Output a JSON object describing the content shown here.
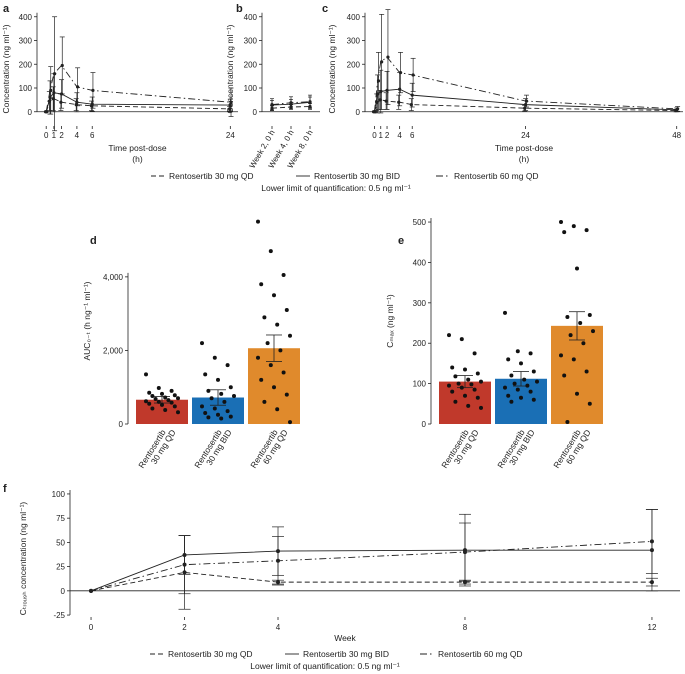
{
  "figure": {
    "colors": {
      "ink": "#222222",
      "bar_qd30": "#c0392b",
      "bar_bid30": "#1a6fb5",
      "bar_qd60": "#e08a2c"
    },
    "legend_top": {
      "entries": [
        {
          "label": "Rentosertib 30 mg QD",
          "dash": "dashed"
        },
        {
          "label": "Rentosertib 30 mg BID",
          "dash": "solid"
        },
        {
          "label": "Rentosertib 60 mg QD",
          "dash": "dashdot"
        }
      ],
      "lloq": "Lower limit of quantification: 0.5 ng ml⁻¹"
    },
    "legend_bottom": {
      "entries": [
        {
          "label": "Rentosertib 30 mg QD",
          "dash": "dashed"
        },
        {
          "label": "Rentosertib 30 mg BID",
          "dash": "solid"
        },
        {
          "label": "Rentosertib 60 mg QD",
          "dash": "dashdot"
        }
      ],
      "lloq": "Lower limit of quantification: 0.5 ng ml⁻¹"
    }
  },
  "chart_data": [
    {
      "panel": "a",
      "type": "line",
      "xlabel": "Time post-dose",
      "xunit": "(h)",
      "ylabel": "Concentration (ng ml⁻¹)",
      "xlim": [
        -1.2,
        25
      ],
      "ylim": [
        -60,
        420
      ],
      "xticks": [
        0,
        1,
        2,
        4,
        6,
        24
      ],
      "yticks": [
        0,
        100,
        200,
        300,
        400
      ],
      "series": [
        {
          "name": "Rentosertib 30 mg QD",
          "dash": "dashed",
          "x": [
            0,
            0.5,
            1,
            2,
            4,
            6,
            24
          ],
          "y": [
            0,
            45,
            55,
            40,
            30,
            25,
            12
          ],
          "err": [
            0,
            40,
            50,
            35,
            25,
            20,
            10
          ]
        },
        {
          "name": "Rentosertib 30 mg BID",
          "dash": "solid",
          "x": [
            0,
            0.5,
            1,
            2,
            4,
            6,
            24
          ],
          "y": [
            0,
            60,
            80,
            75,
            40,
            32,
            28
          ],
          "err": [
            0,
            70,
            80,
            60,
            40,
            30,
            25
          ]
        },
        {
          "name": "Rentosertib 60 mg QD",
          "dash": "dashdot",
          "x": [
            0,
            0.5,
            1,
            2,
            4,
            6,
            24
          ],
          "y": [
            0,
            90,
            160,
            195,
            105,
            90,
            40
          ],
          "err": [
            0,
            100,
            240,
            120,
            80,
            75,
            60
          ]
        }
      ]
    },
    {
      "panel": "b",
      "type": "line",
      "ylabel": "Concentration (ng ml⁻¹)",
      "ylim": [
        -60,
        420
      ],
      "yticks": [
        0,
        100,
        200,
        300,
        400
      ],
      "categories": [
        "Week 2, 0 h",
        "Week 4, 0 h",
        "Week 8, 0 h"
      ],
      "series": [
        {
          "name": "Rentosertib 30 mg QD",
          "dash": "dashed",
          "values": [
            15,
            20,
            22
          ],
          "err": [
            10,
            10,
            12
          ]
        },
        {
          "name": "Rentosertib 30 mg BID",
          "dash": "solid",
          "values": [
            28,
            32,
            40
          ],
          "err": [
            20,
            20,
            22
          ]
        },
        {
          "name": "Rentosertib 60 mg QD",
          "dash": "dashdot",
          "values": [
            30,
            38,
            42
          ],
          "err": [
            25,
            25,
            28
          ]
        }
      ]
    },
    {
      "panel": "c",
      "type": "line",
      "xlabel": "Time post-dose",
      "xunit": "(h)",
      "ylabel": "Concentration (ng ml⁻¹)",
      "xlim": [
        -1.5,
        49
      ],
      "ylim": [
        -60,
        420
      ],
      "xticks": [
        0,
        1,
        2,
        4,
        6,
        24,
        48
      ],
      "yticks": [
        0,
        100,
        200,
        300,
        400
      ],
      "series": [
        {
          "name": "Rentosertib 30 mg QD",
          "dash": "dashed",
          "x": [
            0,
            0.5,
            1,
            2,
            4,
            6,
            24,
            48
          ],
          "y": [
            0,
            40,
            50,
            45,
            40,
            30,
            15,
            5
          ],
          "err": [
            0,
            35,
            40,
            35,
            30,
            25,
            12,
            5
          ]
        },
        {
          "name": "Rentosertib 30 mg BID",
          "dash": "solid",
          "x": [
            0,
            0.5,
            1,
            2,
            4,
            6,
            24,
            48
          ],
          "y": [
            0,
            75,
            85,
            90,
            95,
            70,
            30,
            8
          ],
          "err": [
            0,
            80,
            90,
            80,
            70,
            50,
            25,
            8
          ]
        },
        {
          "name": "Rentosertib 60 mg QD",
          "dash": "dashdot",
          "x": [
            0,
            0.5,
            1,
            2,
            4,
            6,
            24,
            48
          ],
          "y": [
            0,
            130,
            210,
            230,
            165,
            155,
            45,
            12
          ],
          "err": [
            0,
            120,
            200,
            200,
            85,
            70,
            25,
            10
          ]
        }
      ]
    },
    {
      "panel": "d",
      "type": "bar",
      "ylabel": "AUC₀₋ₜ (h ng⁻¹ ml⁻¹)",
      "ylim": [
        0,
        5600
      ],
      "yticks": [
        0,
        2000,
        4000
      ],
      "ytick_labels": [
        "0",
        "2,000",
        "4,000"
      ],
      "categories": [
        "Rentosertib\n30 mg QD",
        "Rentosertib\n30 mg BID",
        "Rentosertib\n60 mg QD"
      ],
      "values": [
        660,
        720,
        2060
      ],
      "err": [
        90,
        210,
        360
      ],
      "points": [
        [
          1350,
          980,
          900,
          850,
          820,
          780,
          760,
          720,
          700,
          680,
          650,
          620,
          600,
          580,
          550,
          520,
          480,
          420,
          380,
          320
        ],
        [
          2200,
          1800,
          1600,
          1350,
          1200,
          1000,
          900,
          820,
          760,
          700,
          600,
          480,
          420,
          350,
          300,
          250,
          200,
          180,
          150
        ],
        [
          5500,
          4700,
          4050,
          3800,
          3500,
          3100,
          2900,
          2700,
          2400,
          2200,
          2000,
          1800,
          1600,
          1400,
          1200,
          1000,
          800,
          600,
          400,
          50
        ]
      ]
    },
    {
      "panel": "e",
      "type": "bar",
      "ylabel": "Cₘₐₓ (ng ml⁻¹)",
      "ylim": [
        0,
        510
      ],
      "yticks": [
        0,
        100,
        200,
        300,
        400,
        500
      ],
      "categories": [
        "Rentosertib\n30 mg QD",
        "Rentosertib\n30 mg BID",
        "Rentosertib\n60 mg QD"
      ],
      "values": [
        105,
        112,
        243
      ],
      "err": [
        15,
        18,
        35
      ],
      "points": [
        [
          220,
          210,
          175,
          140,
          135,
          125,
          118,
          110,
          105,
          100,
          98,
          95,
          90,
          85,
          80,
          70,
          65,
          55,
          45,
          40
        ],
        [
          275,
          180,
          175,
          160,
          150,
          130,
          120,
          110,
          105,
          100,
          95,
          90,
          85,
          80,
          70,
          65,
          60,
          55
        ],
        [
          500,
          490,
          480,
          475,
          385,
          270,
          265,
          250,
          230,
          220,
          200,
          170,
          160,
          130,
          120,
          75,
          50,
          5
        ]
      ]
    },
    {
      "panel": "f",
      "type": "line",
      "xlabel": "Week",
      "ylabel": "Cₜᵣₒᵤ₉ₕ concentration (ng ml⁻¹)",
      "xlim": [
        -0.45,
        12.6
      ],
      "ylim": [
        -27,
        102
      ],
      "xticks": [
        0,
        2,
        4,
        8,
        12
      ],
      "yticks": [
        -25,
        0,
        25,
        50,
        75,
        100
      ],
      "series": [
        {
          "name": "Rentosertib 30 mg QD",
          "dash": "dashed",
          "x": [
            0,
            2,
            4,
            8,
            12
          ],
          "y": [
            0,
            19,
            9,
            9,
            9
          ],
          "err": [
            0,
            38,
            2,
            2,
            4
          ]
        },
        {
          "name": "Rentosertib 30 mg BID",
          "dash": "solid",
          "x": [
            0,
            2,
            4,
            8,
            12
          ],
          "y": [
            0,
            37,
            41,
            42,
            42
          ],
          "err": [
            0,
            20,
            25,
            37,
            42
          ]
        },
        {
          "name": "Rentosertib 60 mg QD",
          "dash": "dashdot",
          "x": [
            0,
            2,
            4,
            8,
            12
          ],
          "y": [
            0,
            27,
            31,
            40,
            51
          ],
          "err": [
            0,
            30,
            25,
            30,
            33
          ]
        }
      ]
    }
  ]
}
